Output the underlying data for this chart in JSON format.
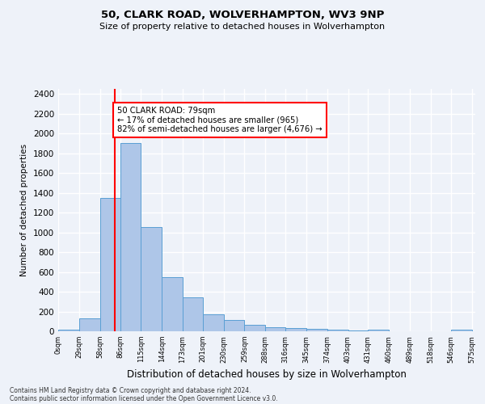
{
  "title_line1": "50, CLARK ROAD, WOLVERHAMPTON, WV3 9NP",
  "title_line2": "Size of property relative to detached houses in Wolverhampton",
  "xlabel": "Distribution of detached houses by size in Wolverhampton",
  "ylabel": "Number of detached properties",
  "bar_edges": [
    0,
    29,
    58,
    86,
    115,
    144,
    173,
    201,
    230,
    259,
    288,
    316,
    345,
    374,
    403,
    431,
    460,
    489,
    518,
    546,
    575
  ],
  "bar_heights": [
    20,
    130,
    1350,
    1900,
    1050,
    550,
    340,
    170,
    115,
    65,
    40,
    30,
    25,
    20,
    5,
    20,
    0,
    0,
    0,
    20
  ],
  "bar_color": "#aec6e8",
  "bar_edge_color": "#5a9fd4",
  "vline_color": "red",
  "vline_x": 79,
  "annotation_text": "50 CLARK ROAD: 79sqm\n← 17% of detached houses are smaller (965)\n82% of semi-detached houses are larger (4,676) →",
  "annotation_box_color": "white",
  "annotation_box_edge_color": "red",
  "ylim": [
    0,
    2450
  ],
  "xlim": [
    0,
    580
  ],
  "yticks": [
    0,
    200,
    400,
    600,
    800,
    1000,
    1200,
    1400,
    1600,
    1800,
    2000,
    2200,
    2400
  ],
  "xtick_labels": [
    "0sqm",
    "29sqm",
    "58sqm",
    "86sqm",
    "115sqm",
    "144sqm",
    "173sqm",
    "201sqm",
    "230sqm",
    "259sqm",
    "288sqm",
    "316sqm",
    "345sqm",
    "374sqm",
    "403sqm",
    "431sqm",
    "460sqm",
    "489sqm",
    "518sqm",
    "546sqm",
    "575sqm"
  ],
  "footer_line1": "Contains HM Land Registry data © Crown copyright and database right 2024.",
  "footer_line2": "Contains public sector information licensed under the Open Government Licence v3.0.",
  "bg_color": "#eef2f9",
  "grid_color": "white"
}
